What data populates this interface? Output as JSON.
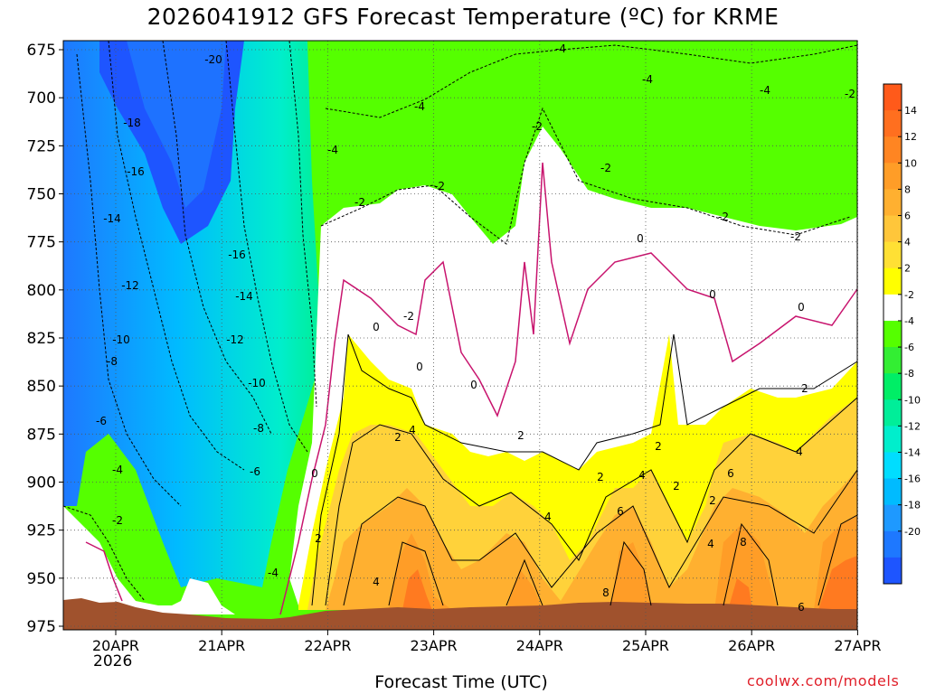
{
  "chart_data": {
    "type": "heatmap",
    "title": "2026041912 GFS Forecast Temperature (ºC) for KRME",
    "xlabel": "Forecast Time (UTC)",
    "credit": "coolwx.com/models",
    "x_ticks": [
      "20APR",
      "21APR",
      "22APR",
      "23APR",
      "24APR",
      "25APR",
      "26APR",
      "27APR"
    ],
    "x_year": "2026",
    "y_ticks": [
      675,
      700,
      725,
      750,
      775,
      800,
      825,
      850,
      875,
      900,
      925,
      950,
      975
    ],
    "ylim": [
      975,
      675
    ],
    "colorbar": {
      "labels": [
        "14",
        "12",
        "10",
        "8",
        "6",
        "4",
        "2",
        "-2",
        "-4",
        "-6",
        "-8",
        "-10",
        "-12",
        "-14",
        "-16",
        "-18",
        "-20"
      ],
      "bands": [
        "#ff5a1a",
        "#ff6f1f",
        "#ff8522",
        "#ff9d27",
        "#ffb030",
        "#ffc63a",
        "#ffe034",
        "#ffff00",
        "#ffffff",
        "#55ff00",
        "#33ee33",
        "#00ee66",
        "#00ee99",
        "#00eecc",
        "#00ddff",
        "#00bbff",
        "#1e99ff",
        "#1e78ff",
        "#1e55ff"
      ]
    },
    "contour_labels": [
      "-20",
      "-18",
      "-16",
      "-14",
      "-12",
      "-10",
      "-8",
      "-6",
      "-4",
      "-2",
      "0",
      "2",
      "4",
      "6",
      "8"
    ],
    "grid": true
  }
}
